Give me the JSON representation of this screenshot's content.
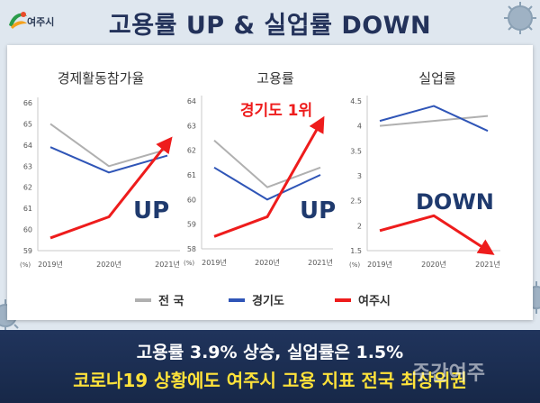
{
  "logo": {
    "text": "여주시",
    "icon": "yeoju-city-logo-icon"
  },
  "title": "고용률 UP & 실업률 DOWN",
  "legend": [
    {
      "name": "전   국",
      "color": "#b0b0b0"
    },
    {
      "name": "경기도",
      "color": "#2f55b7"
    },
    {
      "name": "여주시",
      "color": "#ee1c1c"
    }
  ],
  "subtitle": "고용률 3.9% 상승, 실업률은 1.5%",
  "headline": "코로나19 상황에도 여주시 고용 지표 전국 최상위권",
  "watermark": "주간여주",
  "chart_data": [
    {
      "type": "line",
      "title": "경제활동참가율",
      "categories": [
        "2019년",
        "2020년",
        "2021년"
      ],
      "unit_label": "(%)",
      "ylim": [
        59,
        66
      ],
      "yticks": [
        "59",
        "60",
        "61",
        "62",
        "63",
        "64",
        "65",
        "66"
      ],
      "annotation": "UP",
      "series": [
        {
          "name": "전   국",
          "values": [
            65.0,
            63.0,
            63.8
          ]
        },
        {
          "name": "경기도",
          "values": [
            63.9,
            62.7,
            63.5
          ]
        },
        {
          "name": "여주시",
          "values": [
            59.6,
            60.6,
            64.1
          ]
        }
      ]
    },
    {
      "type": "line",
      "title": "고용률",
      "categories": [
        "2019년",
        "2020년",
        "2021년"
      ],
      "unit_label": "(%)",
      "ylim": [
        58,
        64
      ],
      "yticks": [
        "58",
        "59",
        "60",
        "61",
        "62",
        "63",
        "64"
      ],
      "annotation": "UP",
      "top_annotation": "경기도 1위",
      "series": [
        {
          "name": "전   국",
          "values": [
            62.4,
            60.5,
            61.3
          ]
        },
        {
          "name": "경기도",
          "values": [
            61.3,
            60.0,
            61.0
          ]
        },
        {
          "name": "여주시",
          "values": [
            58.5,
            59.3,
            63.1
          ]
        }
      ]
    },
    {
      "type": "line",
      "title": "실업률",
      "categories": [
        "2019년",
        "2020년",
        "2021년"
      ],
      "unit_label": "(%)",
      "ylim": [
        1.5,
        4.5
      ],
      "yticks": [
        "1.5",
        "2",
        "2.5",
        "3",
        "3.5",
        "4",
        "4.5"
      ],
      "annotation": "DOWN",
      "series": [
        {
          "name": "전   국",
          "values": [
            4.0,
            4.1,
            4.2
          ]
        },
        {
          "name": "경기도",
          "values": [
            4.1,
            4.4,
            3.9
          ]
        },
        {
          "name": "여주시",
          "values": [
            1.9,
            2.2,
            1.5
          ]
        }
      ]
    }
  ]
}
